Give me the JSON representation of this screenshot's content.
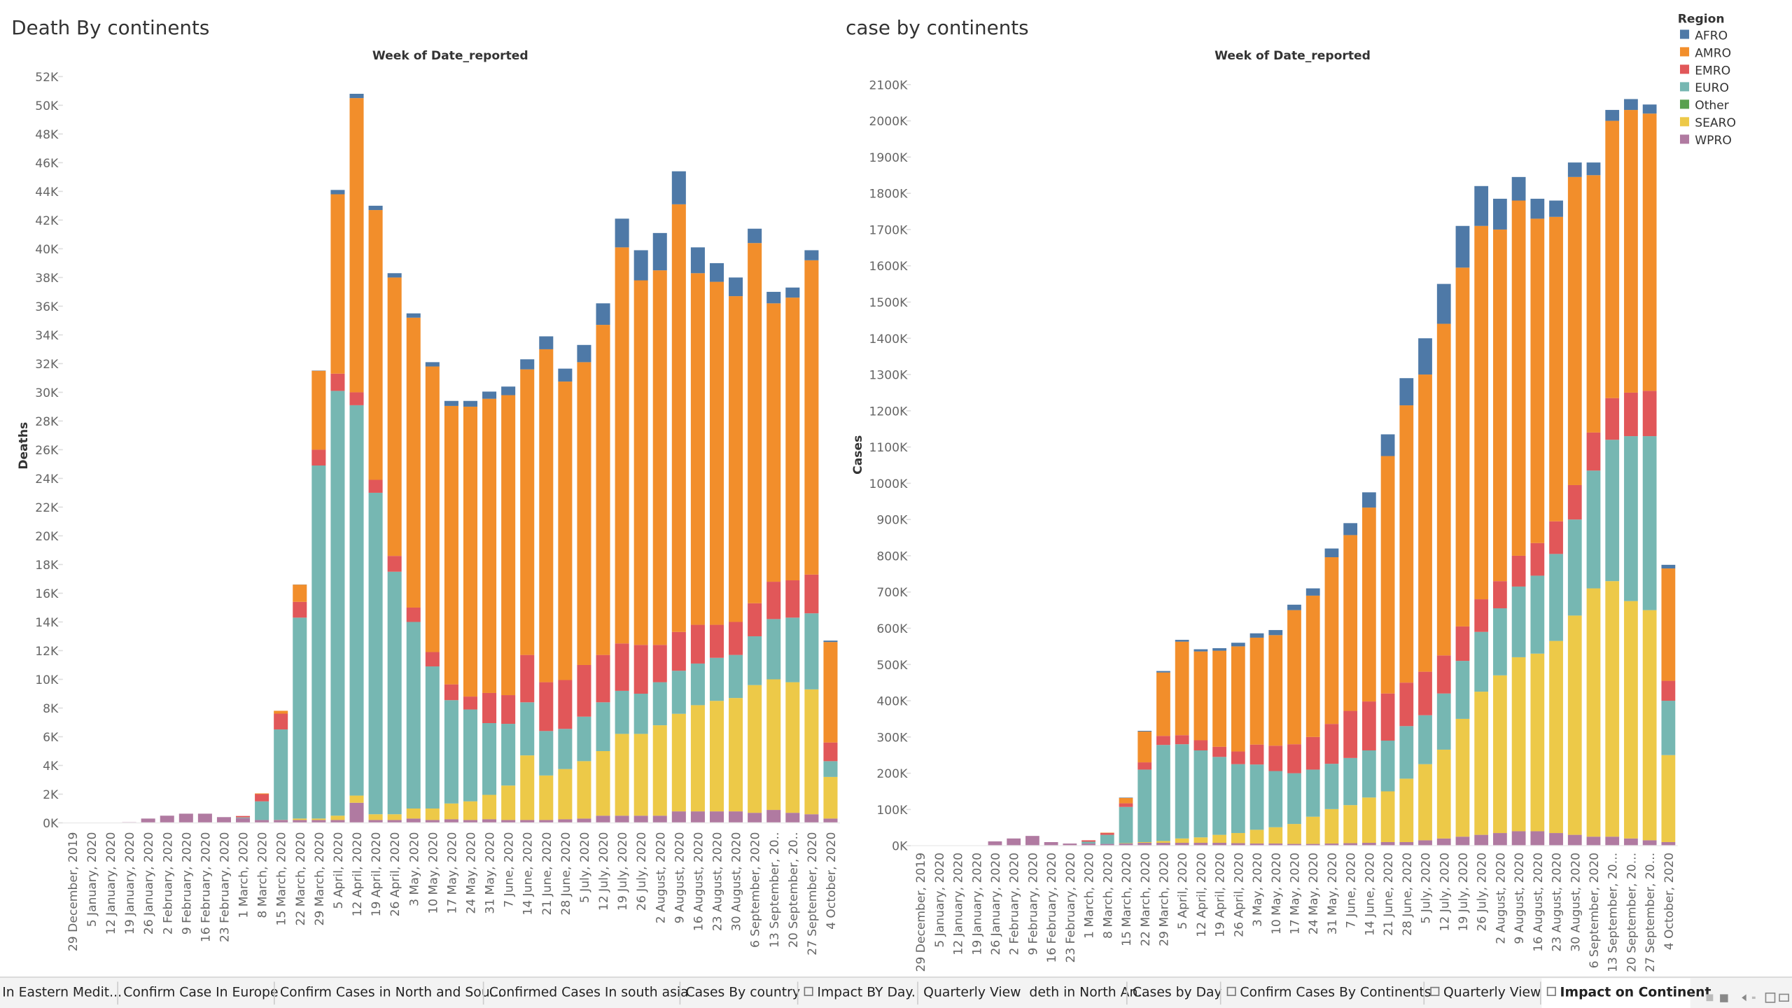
{
  "chart_data": [
    {
      "type": "stacked_bar",
      "title": "Death By continents",
      "subtitle": "Week of Date_reported",
      "y_label": "Deaths",
      "categories": [
        "29 December, 2019",
        "5 January, 2020",
        "12 January, 2020",
        "19 January, 2020",
        "26 January, 2020",
        "2 February, 2020",
        "9 February, 2020",
        "16 February, 2020",
        "23 February, 2020",
        "1 March, 2020",
        "8 March, 2020",
        "15 March, 2020",
        "22 March, 2020",
        "29 March, 2020",
        "5 April, 2020",
        "12 April, 2020",
        "19 April, 2020",
        "26 April, 2020",
        "3 May, 2020",
        "10 May, 2020",
        "17 May, 2020",
        "24 May, 2020",
        "31 May, 2020",
        "7 June, 2020",
        "14 June, 2020",
        "21 June, 2020",
        "28 June, 2020",
        "5 July, 2020",
        "12 July, 2020",
        "19 July, 2020",
        "26 July, 2020",
        "2 August, 2020",
        "9 August, 2020",
        "16 August, 2020",
        "23 August, 2020",
        "30 August, 2020",
        "6 September, 2020",
        "13 September, 20..",
        "20 September, 20..",
        "27 September, 2020",
        "4 October, 2020"
      ],
      "series": [
        {
          "name": "AFRO",
          "color": "#4e79a7",
          "values": [
            0,
            0,
            0,
            0,
            0,
            0,
            0,
            0,
            0,
            0,
            0,
            0,
            10,
            20,
            300,
            300,
            300,
            300,
            300,
            300,
            350,
            400,
            500,
            600,
            700,
            900,
            900,
            1200,
            1500,
            2000,
            2100,
            2600,
            2300,
            1800,
            1300,
            1300,
            1000,
            800,
            700,
            700,
            100
          ]
        },
        {
          "name": "AMRO",
          "color": "#f28e2b",
          "values": [
            0,
            0,
            0,
            0,
            0,
            0,
            0,
            0,
            0,
            0,
            50,
            200,
            1200,
            5500,
            12500,
            20500,
            18800,
            19400,
            20200,
            19900,
            19400,
            20200,
            20500,
            20900,
            19900,
            23200,
            20800,
            21100,
            23000,
            27600,
            25400,
            26100,
            29800,
            24500,
            23900,
            22700,
            25100,
            19400,
            19700,
            21900,
            7000
          ]
        },
        {
          "name": "EMRO",
          "color": "#e15759",
          "values": [
            0,
            0,
            0,
            0,
            0,
            0,
            0,
            0,
            0,
            100,
            500,
            1100,
            1100,
            1100,
            1200,
            900,
            900,
            1100,
            1000,
            1000,
            1100,
            900,
            2100,
            2000,
            3300,
            3400,
            3400,
            3600,
            3300,
            3300,
            3400,
            2600,
            2700,
            2700,
            2300,
            2300,
            2300,
            2600,
            2600,
            2700,
            1300
          ]
        },
        {
          "name": "EURO",
          "color": "#76b7b2",
          "values": [
            0,
            0,
            0,
            0,
            0,
            0,
            0,
            0,
            0,
            50,
            1300,
            6300,
            14000,
            24600,
            29600,
            27200,
            22400,
            16900,
            13000,
            9900,
            7200,
            6400,
            5000,
            4300,
            3700,
            3100,
            2800,
            3100,
            3400,
            3000,
            2800,
            3000,
            3000,
            2900,
            3000,
            3000,
            3400,
            4200,
            4500,
            5300,
            1100
          ]
        },
        {
          "name": "Other",
          "color": "#59a14f",
          "values": [
            0,
            0,
            0,
            0,
            0,
            0,
            0,
            0,
            0,
            0,
            0,
            0,
            0,
            0,
            0,
            0,
            0,
            0,
            0,
            0,
            0,
            0,
            0,
            0,
            0,
            0,
            0,
            0,
            0,
            0,
            0,
            0,
            0,
            0,
            0,
            0,
            0,
            0,
            0,
            0,
            0
          ]
        },
        {
          "name": "SEARO",
          "color": "#edc948",
          "values": [
            0,
            0,
            0,
            0,
            0,
            0,
            0,
            0,
            0,
            0,
            0,
            10,
            100,
            100,
            300,
            500,
            400,
            400,
            700,
            800,
            1100,
            1300,
            1700,
            2400,
            4500,
            3100,
            3500,
            4000,
            4500,
            5700,
            5700,
            6300,
            6800,
            7400,
            7700,
            7900,
            8900,
            9100,
            9100,
            8700,
            2900
          ]
        },
        {
          "name": "WPRO",
          "color": "#b07aa1",
          "values": [
            0,
            0,
            0,
            50,
            300,
            500,
            640,
            640,
            400,
            330,
            200,
            200,
            200,
            200,
            200,
            1400,
            200,
            200,
            300,
            200,
            250,
            200,
            250,
            200,
            200,
            200,
            250,
            300,
            500,
            500,
            500,
            500,
            800,
            800,
            800,
            800,
            700,
            900,
            700,
            600,
            300
          ]
        }
      ],
      "ylim": [
        0,
        52000
      ],
      "yticks": [
        {
          "value": 0,
          "label": "0K"
        },
        {
          "value": 2000,
          "label": "2K"
        },
        {
          "value": 4000,
          "label": "4K"
        },
        {
          "value": 6000,
          "label": "6K"
        },
        {
          "value": 8000,
          "label": "8K"
        },
        {
          "value": 10000,
          "label": "10K"
        },
        {
          "value": 12000,
          "label": "12K"
        },
        {
          "value": 14000,
          "label": "14K"
        },
        {
          "value": 16000,
          "label": "16K"
        },
        {
          "value": 18000,
          "label": "18K"
        },
        {
          "value": 20000,
          "label": "20K"
        },
        {
          "value": 22000,
          "label": "22K"
        },
        {
          "value": 24000,
          "label": "24K"
        },
        {
          "value": 26000,
          "label": "26K"
        },
        {
          "value": 28000,
          "label": "28K"
        },
        {
          "value": 30000,
          "label": "30K"
        },
        {
          "value": 32000,
          "label": "32K"
        },
        {
          "value": 34000,
          "label": "34K"
        },
        {
          "value": 36000,
          "label": "36K"
        },
        {
          "value": 38000,
          "label": "38K"
        },
        {
          "value": 40000,
          "label": "40K"
        },
        {
          "value": 42000,
          "label": "42K"
        },
        {
          "value": 44000,
          "label": "44K"
        },
        {
          "value": 46000,
          "label": "46K"
        },
        {
          "value": 48000,
          "label": "48K"
        },
        {
          "value": 50000,
          "label": "50K"
        },
        {
          "value": 52000,
          "label": "52K"
        }
      ]
    },
    {
      "type": "stacked_bar",
      "title": "case by continents",
      "subtitle": "Week of Date_reported",
      "y_label": "Cases",
      "legend_title": "Region",
      "categories": [
        "29 December, 2019",
        "5 January, 2020",
        "12 January, 2020",
        "19 January, 2020",
        "26 January, 2020",
        "2 February, 2020",
        "9 February, 2020",
        "16 February, 2020",
        "23 February, 2020",
        "1 March, 2020",
        "8 March, 2020",
        "15 March, 2020",
        "22 March, 2020",
        "29 March, 2020",
        "5 April, 2020",
        "12 April, 2020",
        "19 April, 2020",
        "26 April, 2020",
        "3 May, 2020",
        "10 May, 2020",
        "17 May, 2020",
        "24 May, 2020",
        "31 May, 2020",
        "7 June, 2020",
        "14 June, 2020",
        "21 June, 2020",
        "28 June, 2020",
        "5 July, 2020",
        "12 July, 2020",
        "19 July, 2020",
        "26 July, 2020",
        "2 August, 2020",
        "9 August, 2020",
        "16 August, 2020",
        "23 August, 2020",
        "30 August, 2020",
        "6 September, 2020",
        "13 September, 20...",
        "20 September, 20...",
        "27 September, 20...",
        "4 October, 2020"
      ],
      "series": [
        {
          "name": "AFRO",
          "color": "#4e79a7",
          "values": [
            0,
            0,
            0,
            0,
            0,
            0,
            0,
            0,
            0,
            0,
            0,
            1000,
            2000,
            4000,
            5000,
            6000,
            7000,
            10000,
            12000,
            14000,
            15000,
            20000,
            24000,
            33000,
            42000,
            60000,
            75000,
            100000,
            110000,
            115000,
            110000,
            85000,
            65000,
            55000,
            45000,
            40000,
            35000,
            30000,
            30000,
            25000,
            10000
          ]
        },
        {
          "name": "AMRO",
          "color": "#f28e2b",
          "values": [
            0,
            0,
            0,
            0,
            0,
            0,
            0,
            0,
            0,
            0,
            1000,
            15000,
            85000,
            175000,
            258000,
            245000,
            265000,
            290000,
            295000,
            305000,
            370000,
            390000,
            460000,
            485000,
            535000,
            655000,
            765000,
            820000,
            915000,
            990000,
            1030000,
            970000,
            980000,
            895000,
            840000,
            850000,
            710000,
            765000,
            780000,
            765000,
            310000
          ]
        },
        {
          "name": "EMRO",
          "color": "#e15759",
          "values": [
            0,
            0,
            0,
            0,
            0,
            0,
            0,
            0,
            0,
            4000,
            5000,
            10000,
            20000,
            25000,
            25000,
            28000,
            28000,
            35000,
            55000,
            70000,
            80000,
            90000,
            110000,
            130000,
            135000,
            130000,
            120000,
            120000,
            105000,
            95000,
            90000,
            75000,
            85000,
            90000,
            90000,
            95000,
            105000,
            115000,
            120000,
            125000,
            55000
          ]
        },
        {
          "name": "EURO",
          "color": "#76b7b2",
          "values": [
            0,
            0,
            0,
            0,
            0,
            0,
            0,
            0,
            0,
            5000,
            25000,
            100000,
            200000,
            265000,
            260000,
            240000,
            215000,
            190000,
            180000,
            155000,
            140000,
            130000,
            125000,
            130000,
            130000,
            140000,
            145000,
            135000,
            155000,
            160000,
            165000,
            185000,
            195000,
            215000,
            240000,
            265000,
            325000,
            390000,
            455000,
            480000,
            150000
          ]
        },
        {
          "name": "Other",
          "color": "#59a14f",
          "values": [
            0,
            0,
            0,
            0,
            0,
            0,
            0,
            0,
            0,
            0,
            0,
            0,
            0,
            0,
            0,
            0,
            0,
            0,
            0,
            0,
            0,
            0,
            0,
            0,
            0,
            0,
            0,
            0,
            0,
            0,
            0,
            0,
            0,
            0,
            0,
            0,
            0,
            0,
            0,
            0,
            0
          ]
        },
        {
          "name": "SEARO",
          "color": "#edc948",
          "values": [
            0,
            0,
            0,
            0,
            0,
            0,
            0,
            0,
            0,
            0,
            0,
            1000,
            2000,
            5000,
            12000,
            15000,
            22000,
            28000,
            38000,
            45000,
            55000,
            75000,
            95000,
            105000,
            125000,
            140000,
            175000,
            210000,
            245000,
            325000,
            395000,
            435000,
            480000,
            490000,
            530000,
            605000,
            685000,
            705000,
            655000,
            635000,
            240000
          ]
        },
        {
          "name": "WPRO",
          "color": "#b07aa1",
          "values": [
            0,
            0,
            0,
            1000,
            12000,
            20000,
            27000,
            10000,
            6000,
            6000,
            5000,
            6000,
            8000,
            8000,
            8000,
            8000,
            8000,
            7000,
            6000,
            6000,
            5000,
            5000,
            6000,
            7000,
            8000,
            10000,
            10000,
            15000,
            20000,
            25000,
            30000,
            35000,
            40000,
            40000,
            35000,
            30000,
            25000,
            25000,
            20000,
            15000,
            10000
          ]
        }
      ],
      "ylim": [
        0,
        2100000
      ],
      "yticks": [
        {
          "value": 0,
          "label": "0K"
        },
        {
          "value": 100000,
          "label": "100K"
        },
        {
          "value": 200000,
          "label": "200K"
        },
        {
          "value": 300000,
          "label": "300K"
        },
        {
          "value": 400000,
          "label": "400K"
        },
        {
          "value": 500000,
          "label": "500K"
        },
        {
          "value": 600000,
          "label": "600K"
        },
        {
          "value": 700000,
          "label": "700K"
        },
        {
          "value": 800000,
          "label": "800K"
        },
        {
          "value": 900000,
          "label": "900K"
        },
        {
          "value": 1000000,
          "label": "1000K"
        },
        {
          "value": 1100000,
          "label": "1100K"
        },
        {
          "value": 1200000,
          "label": "1200K"
        },
        {
          "value": 1300000,
          "label": "1300K"
        },
        {
          "value": 1400000,
          "label": "1400K"
        },
        {
          "value": 1500000,
          "label": "1500K"
        },
        {
          "value": 1600000,
          "label": "1600K"
        },
        {
          "value": 1700000,
          "label": "1700K"
        },
        {
          "value": 1800000,
          "label": "1800K"
        },
        {
          "value": 1900000,
          "label": "1900K"
        },
        {
          "value": 2000000,
          "label": "2000K"
        },
        {
          "value": 2100000,
          "label": "2100K"
        }
      ]
    }
  ],
  "tabs": [
    "In Eastern Medit...",
    "Confirm Case In Europe",
    "Confirm Cases in North and Sou...",
    "Confirmed Cases In south asia",
    "Cases By country",
    "Impact BY Day.",
    "Quarterly View  deth in North An...",
    "Cases by Day",
    "Confirm Cases By Continents",
    "Quarterly View",
    "Impact on Continent"
  ]
}
